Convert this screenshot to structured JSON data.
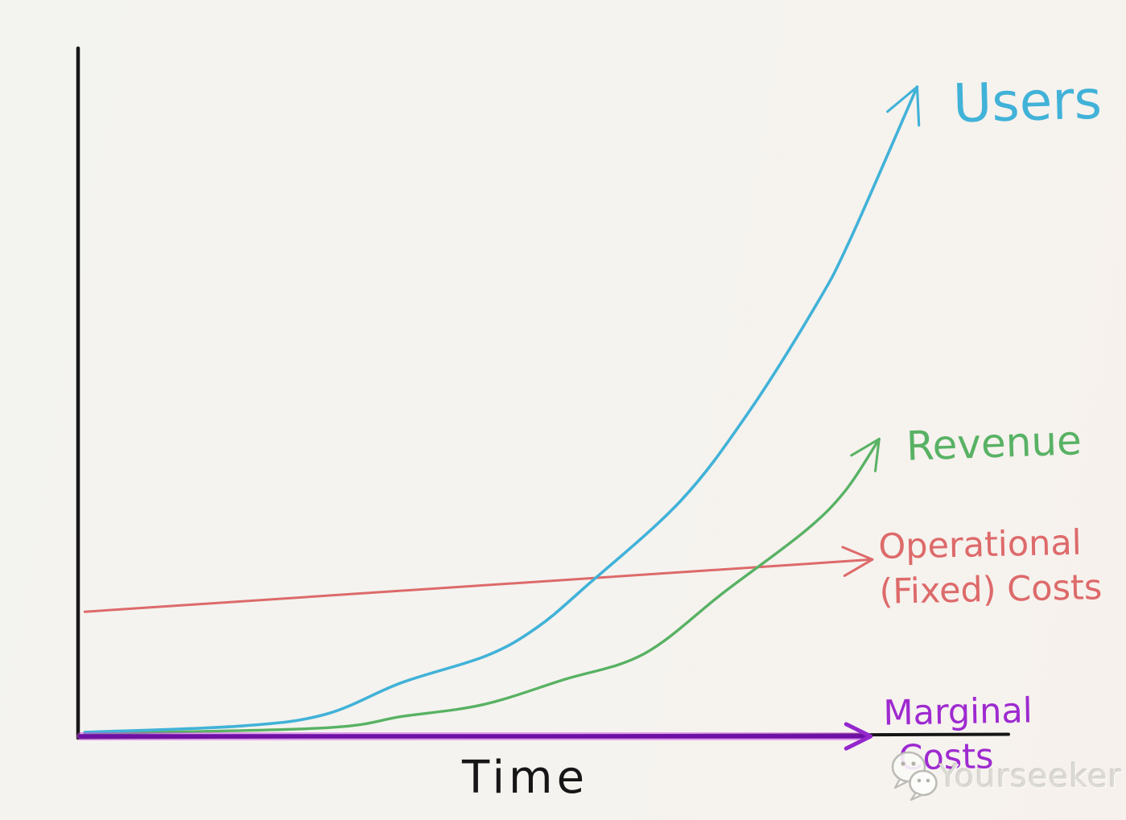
{
  "background_color": "#f4f3ef",
  "axes_color": "#161616",
  "chart_data": {
    "type": "line",
    "style": "hand-drawn sketch",
    "title": "",
    "xlabel": "Time",
    "ylabel": "",
    "grid": false,
    "legend": "curve-end labels with hand-drawn arrows",
    "scale_note": "no numeric ticks; point coordinates normalized 0-1 within plot area",
    "xlim": [
      0,
      1
    ],
    "ylim": [
      0,
      1
    ],
    "series": [
      {
        "name": "Users",
        "color": "#41b2d8",
        "label_lines": [
          "Users"
        ],
        "shape": "exponential growth, steepest curve, ends highest",
        "points": [
          [
            0.005,
            0.006
          ],
          [
            0.19,
            0.015
          ],
          [
            0.29,
            0.032
          ],
          [
            0.38,
            0.078
          ],
          [
            0.48,
            0.117
          ],
          [
            0.54,
            0.158
          ],
          [
            0.6,
            0.22
          ],
          [
            0.71,
            0.342
          ],
          [
            0.79,
            0.47
          ],
          [
            0.87,
            0.626
          ],
          [
            0.91,
            0.72
          ],
          [
            0.99,
            0.944
          ]
        ]
      },
      {
        "name": "Revenue",
        "color": "#58b264",
        "label_lines": [
          "Revenue"
        ],
        "shape": "exponential growth, lags Users",
        "points": [
          [
            0.005,
            0.004
          ],
          [
            0.286,
            0.012
          ],
          [
            0.381,
            0.029
          ],
          [
            0.476,
            0.046
          ],
          [
            0.571,
            0.082
          ],
          [
            0.667,
            0.12
          ],
          [
            0.762,
            0.21
          ],
          [
            0.857,
            0.298
          ],
          [
            0.905,
            0.357
          ],
          [
            0.945,
            0.432
          ]
        ]
      },
      {
        "name": "Operational (Fixed) Costs",
        "color": "#dd6a6a",
        "label_lines": [
          "Operational",
          "(Fixed) Costs"
        ],
        "shape": "nearly flat straight line, slight upward slope",
        "points": [
          [
            0.005,
            0.181
          ],
          [
            0.937,
            0.257
          ]
        ]
      },
      {
        "name": "Marginal Costs",
        "color": "#6e10a6",
        "arrow_color": "#9327cc",
        "label_lines": [
          "Marginal",
          "Costs"
        ],
        "shape": "flat at zero along the x-axis",
        "points": [
          [
            0.0,
            0.0
          ],
          [
            0.935,
            0.0
          ]
        ]
      }
    ]
  },
  "watermark": {
    "text": "Yourseeker",
    "icon": "wechat-icon",
    "text_color": "#dcdad5"
  }
}
